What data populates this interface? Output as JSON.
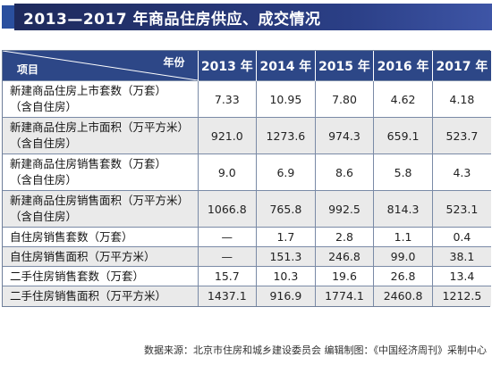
{
  "title": "2013—2017 年商品住房供应、成交情况",
  "header": {
    "corner_left": "项目",
    "corner_right": "年份",
    "years": [
      "2013 年",
      "2014 年",
      "2015 年",
      "2016 年",
      "2017 年"
    ]
  },
  "rows": [
    {
      "label_lines": [
        "新建商品住房上市套数（万套）",
        "（含自住房）"
      ],
      "values": [
        "7.33",
        "10.95",
        "7.80",
        "4.62",
        "4.18"
      ]
    },
    {
      "label_lines": [
        "新建商品住房上市面积（万平方米）",
        "（含自住房）"
      ],
      "values": [
        "921.0",
        "1273.6",
        "974.3",
        "659.1",
        "523.7"
      ]
    },
    {
      "label_lines": [
        "新建商品住房销售套数（万套）",
        "（含自住房）"
      ],
      "values": [
        "9.0",
        "6.9",
        "8.6",
        "5.8",
        "4.3"
      ]
    },
    {
      "label_lines": [
        "新建商品住房销售面积（万平方米）",
        "（含自住房）"
      ],
      "values": [
        "1066.8",
        "765.8",
        "992.5",
        "814.3",
        "523.1"
      ]
    },
    {
      "label_lines": [
        "自住房销售套数（万套）"
      ],
      "values": [
        "—",
        "1.7",
        "2.8",
        "1.1",
        "0.4"
      ]
    },
    {
      "label_lines": [
        "自住房销售面积（万平方米）"
      ],
      "values": [
        "—",
        "151.3",
        "246.8",
        "99.0",
        "38.1"
      ]
    },
    {
      "label_lines": [
        "二手住房销售套数（万套）"
      ],
      "values": [
        "15.7",
        "10.3",
        "19.6",
        "26.8",
        "13.4"
      ]
    },
    {
      "label_lines": [
        "二手住房销售面积（万平方米）"
      ],
      "values": [
        "1437.1",
        "916.9",
        "1774.1",
        "2460.8",
        "1212.5"
      ]
    }
  ],
  "source": "数据来源：北京市住房和城乡建设委员会 编辑制图：《中国经济周刊》采制中心",
  "colors": {
    "title_bg": "#1e2a5c",
    "header_bg": "#2d4787",
    "row_alt": "#eaeaea"
  }
}
